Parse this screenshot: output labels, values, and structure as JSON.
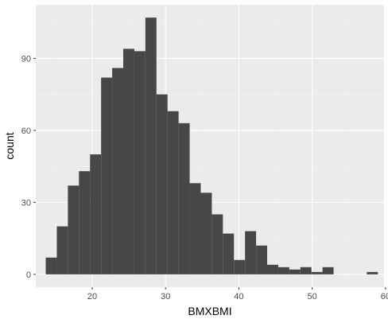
{
  "chart_data": {
    "type": "bar",
    "xlabel": "BMXBMI",
    "ylabel": "count",
    "xlim": [
      12.3,
      59.8
    ],
    "ylim": [
      -5.35,
      112.35
    ],
    "x_ticks": [
      20,
      30,
      40,
      50,
      60
    ],
    "y_ticks": [
      0,
      30,
      60,
      90
    ],
    "grid": true,
    "bin_width": 1.51,
    "bins": [
      {
        "x0": 13.66,
        "x1": 15.17,
        "count": 7
      },
      {
        "x0": 15.17,
        "x1": 16.68,
        "count": 20
      },
      {
        "x0": 16.68,
        "x1": 18.19,
        "count": 37
      },
      {
        "x0": 18.19,
        "x1": 19.7,
        "count": 43
      },
      {
        "x0": 19.7,
        "x1": 21.21,
        "count": 50
      },
      {
        "x0": 21.21,
        "x1": 22.72,
        "count": 82
      },
      {
        "x0": 22.72,
        "x1": 24.23,
        "count": 86
      },
      {
        "x0": 24.23,
        "x1": 25.74,
        "count": 94
      },
      {
        "x0": 25.74,
        "x1": 27.25,
        "count": 93
      },
      {
        "x0": 27.25,
        "x1": 28.76,
        "count": 107
      },
      {
        "x0": 28.76,
        "x1": 30.27,
        "count": 75
      },
      {
        "x0": 30.27,
        "x1": 31.78,
        "count": 68
      },
      {
        "x0": 31.78,
        "x1": 33.29,
        "count": 63
      },
      {
        "x0": 33.29,
        "x1": 34.8,
        "count": 38
      },
      {
        "x0": 34.8,
        "x1": 36.31,
        "count": 34
      },
      {
        "x0": 36.31,
        "x1": 37.82,
        "count": 25
      },
      {
        "x0": 37.82,
        "x1": 39.33,
        "count": 17
      },
      {
        "x0": 39.33,
        "x1": 40.84,
        "count": 6
      },
      {
        "x0": 40.84,
        "x1": 42.35,
        "count": 18
      },
      {
        "x0": 42.35,
        "x1": 43.86,
        "count": 12
      },
      {
        "x0": 43.86,
        "x1": 45.37,
        "count": 4
      },
      {
        "x0": 45.37,
        "x1": 46.88,
        "count": 3
      },
      {
        "x0": 46.88,
        "x1": 48.39,
        "count": 2
      },
      {
        "x0": 48.39,
        "x1": 49.9,
        "count": 3
      },
      {
        "x0": 49.9,
        "x1": 51.41,
        "count": 1
      },
      {
        "x0": 51.41,
        "x1": 52.92,
        "count": 3
      },
      {
        "x0": 52.92,
        "x1": 54.43,
        "count": 0
      },
      {
        "x0": 54.43,
        "x1": 55.94,
        "count": 0
      },
      {
        "x0": 55.94,
        "x1": 57.45,
        "count": 0
      },
      {
        "x0": 57.45,
        "x1": 58.96,
        "count": 1
      }
    ],
    "colors": {
      "panel_background": "#ebebeb",
      "major_grid": "#ffffff",
      "minor_grid": "#f5f5f5",
      "bar_fill": "#474747",
      "tick_label": "#4d4d4d",
      "tick_mark": "#333333"
    }
  }
}
